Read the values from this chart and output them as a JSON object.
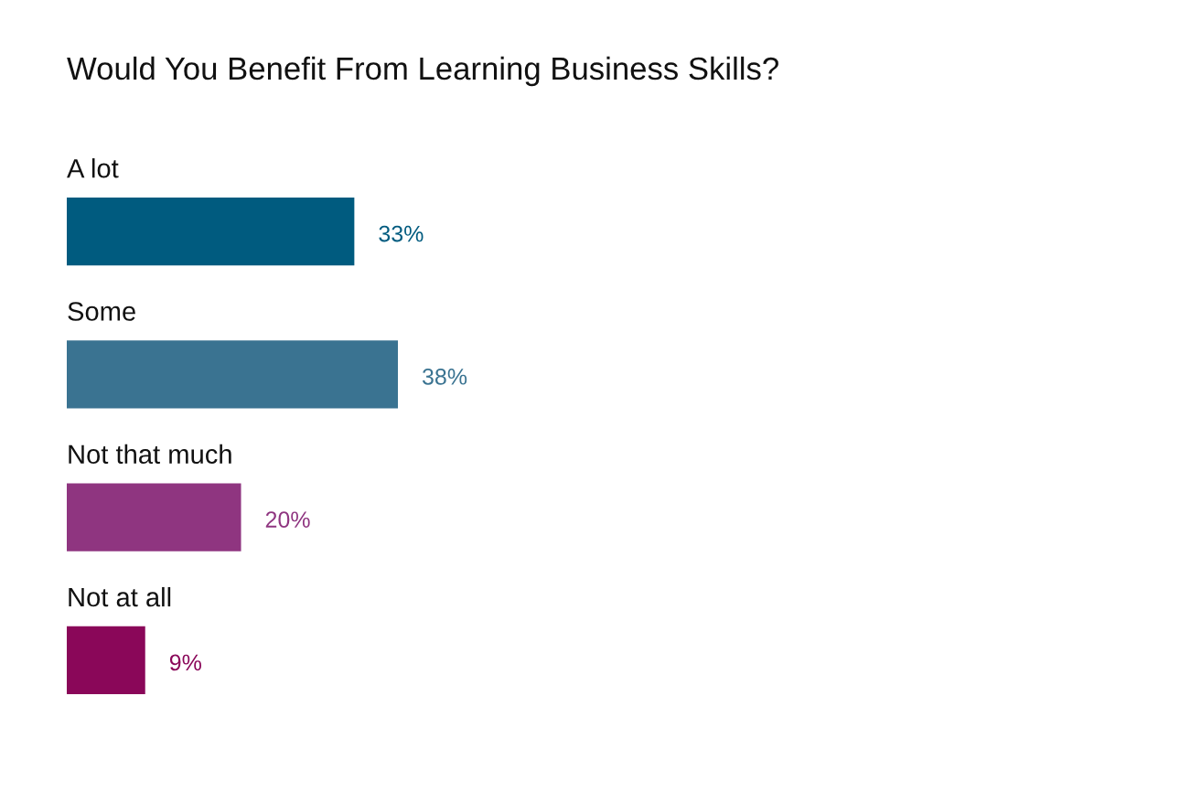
{
  "chart_data": {
    "type": "bar",
    "orientation": "horizontal",
    "title": "Would You Benefit From Learning Business Skills?",
    "categories": [
      "A lot",
      "Some",
      "Not that much",
      "Not at all"
    ],
    "values": [
      33,
      38,
      20,
      9
    ],
    "colors": [
      "#005b7f",
      "#3a7391",
      "#8f3580",
      "#8a0759"
    ],
    "value_labels": [
      "33%",
      "38%",
      "20%",
      "9%"
    ]
  }
}
